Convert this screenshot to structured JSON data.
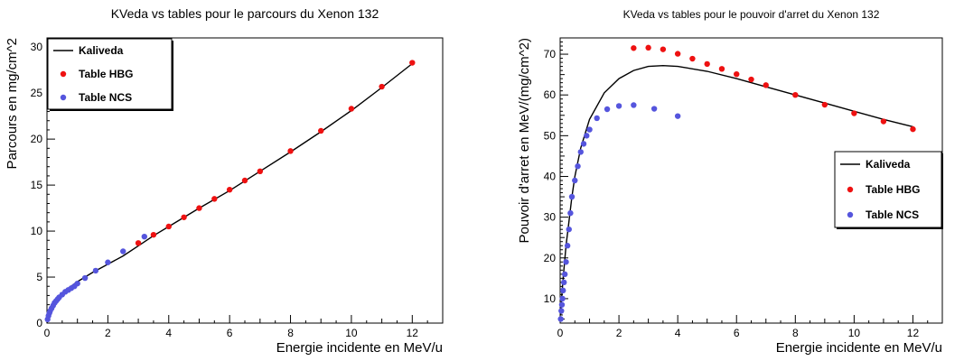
{
  "chart_data": [
    {
      "type": "scatter",
      "title": "KVeda vs tables pour le parcours du Xenon 132",
      "xlabel": "Energie incidente en MeV/u",
      "ylabel": "Parcours en mg/cm^2",
      "xlim": [
        0,
        13
      ],
      "ylim": [
        0,
        31
      ],
      "xticks": [
        0,
        2,
        4,
        6,
        8,
        10,
        12
      ],
      "yticks": [
        0,
        5,
        10,
        15,
        20,
        25,
        30
      ],
      "legend_position": "top-left",
      "grid": false,
      "series": [
        {
          "name": "Kaliveda",
          "kind": "line",
          "color": "#000000",
          "x": [
            0,
            0.05,
            0.1,
            0.2,
            0.3,
            0.5,
            0.7,
            1.0,
            1.5,
            2.0,
            2.5,
            3.0,
            3.5,
            4.0,
            5.0,
            6.0,
            7.0,
            8.0,
            9.0,
            10.0,
            11.0,
            12.0
          ],
          "y": [
            0,
            0.9,
            1.4,
            2.1,
            2.6,
            3.3,
            3.8,
            4.5,
            5.5,
            6.4,
            7.3,
            8.4,
            9.5,
            10.5,
            12.5,
            14.4,
            16.5,
            18.6,
            20.8,
            23.1,
            25.6,
            28.2
          ]
        },
        {
          "name": "Table HBG",
          "kind": "points",
          "color": "#ee1111",
          "x": [
            3.0,
            3.5,
            4.0,
            4.5,
            5.0,
            5.5,
            6.0,
            6.5,
            7.0,
            8.0,
            9.0,
            10.0,
            11.0,
            12.0
          ],
          "y": [
            8.7,
            9.6,
            10.5,
            11.5,
            12.5,
            13.5,
            14.5,
            15.5,
            16.5,
            18.7,
            20.9,
            23.3,
            25.7,
            28.3
          ]
        },
        {
          "name": "Table NCS",
          "kind": "points",
          "color": "#5555dd",
          "x": [
            0.02,
            0.05,
            0.08,
            0.1,
            0.15,
            0.2,
            0.25,
            0.3,
            0.35,
            0.4,
            0.5,
            0.6,
            0.7,
            0.8,
            0.9,
            1.0,
            1.25,
            1.6,
            2.0,
            2.5,
            3.2
          ],
          "y": [
            0.4,
            0.8,
            1.1,
            1.3,
            1.6,
            1.9,
            2.2,
            2.4,
            2.6,
            2.8,
            3.1,
            3.4,
            3.6,
            3.8,
            4.0,
            4.3,
            4.9,
            5.7,
            6.6,
            7.8,
            9.4
          ]
        }
      ]
    },
    {
      "type": "scatter",
      "title": "KVeda vs tables pour le pouvoir d'arret du Xenon 132",
      "xlabel": "Energie incidente en MeV/u",
      "ylabel": "Pouvoir d'arret en MeV/(mg/cm^2)",
      "xlim": [
        0,
        13
      ],
      "ylim": [
        4,
        74
      ],
      "xticks": [
        0,
        2,
        4,
        6,
        8,
        10,
        12
      ],
      "yticks": [
        10,
        20,
        30,
        40,
        50,
        60,
        70
      ],
      "legend_position": "middle-right",
      "grid": false,
      "series": [
        {
          "name": "Kaliveda",
          "kind": "line",
          "color": "#000000",
          "x": [
            0.02,
            0.05,
            0.1,
            0.15,
            0.2,
            0.3,
            0.4,
            0.5,
            0.7,
            1.0,
            1.5,
            2.0,
            2.5,
            3.0,
            3.5,
            4.0,
            5.0,
            6.0,
            7.0,
            8.0,
            9.0,
            10.0,
            11.0,
            12.0
          ],
          "y": [
            6,
            10,
            15,
            19,
            23,
            29,
            35,
            40,
            47,
            54,
            60.5,
            64,
            66,
            67,
            67.2,
            67,
            65.8,
            64,
            62,
            60,
            58,
            56,
            54,
            52.2
          ]
        },
        {
          "name": "Table HBG",
          "kind": "points",
          "color": "#ee1111",
          "x": [
            2.5,
            3.0,
            3.5,
            4.0,
            4.5,
            5.0,
            5.5,
            6.0,
            6.5,
            7.0,
            8.0,
            9.0,
            10.0,
            11.0,
            12.0
          ],
          "y": [
            71.5,
            71.6,
            71.2,
            70.1,
            68.9,
            67.6,
            66.4,
            65.1,
            63.8,
            62.4,
            60.0,
            57.6,
            55.5,
            53.5,
            51.6
          ]
        },
        {
          "name": "Table NCS",
          "kind": "points",
          "color": "#5555dd",
          "x": [
            0.02,
            0.04,
            0.06,
            0.08,
            0.1,
            0.13,
            0.16,
            0.2,
            0.25,
            0.3,
            0.35,
            0.4,
            0.5,
            0.6,
            0.7,
            0.8,
            0.9,
            1.0,
            1.25,
            1.6,
            2.0,
            2.5,
            3.2,
            4.0
          ],
          "y": [
            5,
            7,
            8.5,
            10,
            12,
            14,
            16,
            19,
            23,
            27,
            31,
            35,
            39,
            42.5,
            46,
            48,
            50,
            51.5,
            54.3,
            56.5,
            57.3,
            57.5,
            56.6,
            54.8
          ]
        }
      ]
    }
  ]
}
